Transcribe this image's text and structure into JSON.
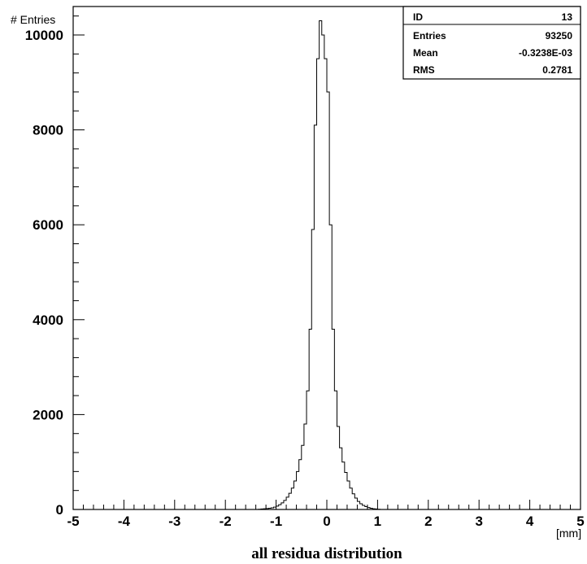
{
  "chart_data": {
    "type": "bar",
    "histogram": true,
    "title": "",
    "caption": "all residua distribution",
    "ylabel": "# Entries",
    "xlabel": "[mm]",
    "xlim": [
      -5,
      5
    ],
    "ylim": [
      0,
      10600
    ],
    "x_ticks": [
      "-5",
      "-4",
      "-3",
      "-2",
      "-1",
      "0",
      "1",
      "2",
      "3",
      "4",
      "5"
    ],
    "y_ticks": [
      "0",
      "2000",
      "4000",
      "6000",
      "8000",
      "10000"
    ],
    "grid": false,
    "legend": "none",
    "bin_width": 0.05,
    "x_start": -5,
    "values": [
      0,
      0,
      0,
      0,
      0,
      0,
      0,
      0,
      0,
      0,
      0,
      0,
      0,
      0,
      0,
      0,
      0,
      0,
      0,
      0,
      0,
      0,
      0,
      0,
      0,
      0,
      0,
      0,
      0,
      0,
      0,
      0,
      0,
      0,
      0,
      0,
      0,
      0,
      0,
      0,
      0,
      0,
      0,
      0,
      0,
      0,
      0,
      0,
      0,
      0,
      0,
      0,
      0,
      0,
      0,
      0,
      0,
      0,
      0,
      0,
      0,
      0,
      0,
      0,
      0,
      0,
      0,
      0,
      0,
      0,
      0,
      0,
      0,
      5,
      10,
      15,
      20,
      25,
      35,
      50,
      70,
      100,
      140,
      190,
      260,
      340,
      450,
      600,
      800,
      1050,
      1350,
      1800,
      2500,
      3800,
      5900,
      8100,
      9500,
      10300,
      10000,
      9500,
      8800,
      6000,
      3800,
      2500,
      1750,
      1300,
      1000,
      780,
      600,
      450,
      330,
      240,
      170,
      120,
      85,
      60,
      40,
      25,
      15,
      10,
      5,
      0,
      0,
      0,
      0,
      0,
      0,
      0,
      0,
      0,
      0,
      0,
      0,
      0,
      0,
      0,
      0,
      0,
      0,
      0,
      0,
      0,
      0,
      0,
      0,
      0,
      0,
      0,
      0,
      0,
      0,
      0,
      0,
      0,
      0,
      0,
      0,
      0,
      0,
      0,
      0,
      0,
      0,
      0,
      0,
      0,
      0,
      0,
      0,
      0,
      0,
      0,
      0,
      0,
      0,
      0,
      0,
      0,
      0,
      0,
      0,
      0,
      0,
      0,
      0,
      0,
      0,
      0,
      0,
      0,
      0,
      0,
      0,
      0,
      0,
      0,
      0,
      0,
      0,
      0
    ]
  },
  "stats_box": {
    "rows": [
      {
        "label": "ID",
        "value": "13"
      },
      {
        "label": "Entries",
        "value": "93250"
      },
      {
        "label": "Mean",
        "value": "-0.3238E-03"
      },
      {
        "label": "RMS",
        "value": "0.2781"
      }
    ]
  }
}
